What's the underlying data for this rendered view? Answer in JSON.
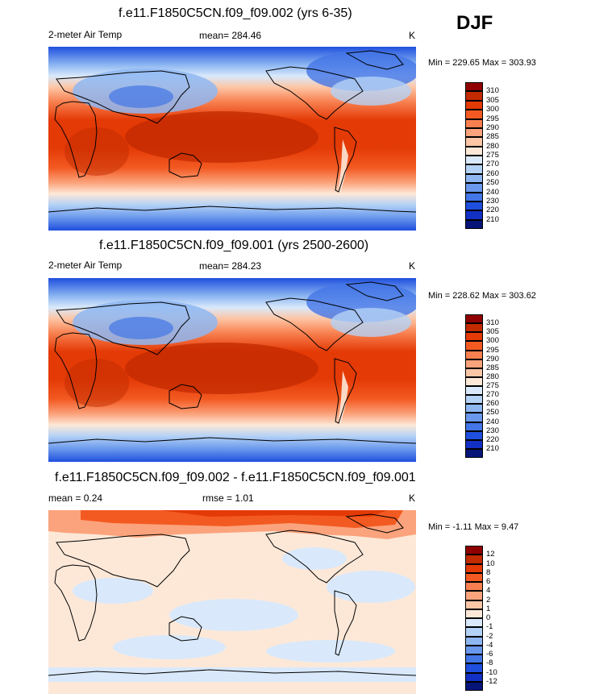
{
  "season": "DJF",
  "panels": [
    {
      "title": "f.e11.F1850C5CN.f09_f09.002 (yrs 6-35)",
      "left": "2-meter Air Temp",
      "center": "mean= 284.46",
      "right": "K",
      "minmax": "Min = 229.65 Max = 303.93",
      "colorbar_labels": [
        "310",
        "305",
        "300",
        "295",
        "290",
        "285",
        "280",
        "275",
        "270",
        "260",
        "250",
        "240",
        "230",
        "220",
        "210"
      ],
      "colorbar_colors": [
        "#8f0000",
        "#c22a00",
        "#e43a06",
        "#f35a22",
        "#f88050",
        "#fba37c",
        "#fdc6a6",
        "#fde8d8",
        "#d9e9fb",
        "#b4d2f6",
        "#8eb7f2",
        "#6a98ec",
        "#4376e6",
        "#1f4fde",
        "#1330c4",
        "#071478"
      ]
    },
    {
      "title": "f.e11.F1850C5CN.f09_f09.001 (yrs 2500-2600)",
      "left": "2-meter Air Temp",
      "center": "mean= 284.23",
      "right": "K",
      "minmax": "Min = 228.62 Max = 303.62",
      "colorbar_labels": [
        "310",
        "305",
        "300",
        "295",
        "290",
        "285",
        "280",
        "275",
        "270",
        "260",
        "250",
        "240",
        "230",
        "220",
        "210"
      ],
      "colorbar_colors": [
        "#8f0000",
        "#c22a00",
        "#e43a06",
        "#f35a22",
        "#f88050",
        "#fba37c",
        "#fdc6a6",
        "#fde8d8",
        "#d9e9fb",
        "#b4d2f6",
        "#8eb7f2",
        "#6a98ec",
        "#4376e6",
        "#1f4fde",
        "#1330c4",
        "#071478"
      ]
    },
    {
      "title": "f.e11.F1850C5CN.f09_f09.002 - f.e11.F1850C5CN.f09_f09.001",
      "left": "mean =   0.24",
      "center": "rmse =   1.01",
      "right": "K",
      "minmax": "Min =  -1.11 Max =   9.47",
      "colorbar_labels": [
        "12",
        "10",
        "8",
        "6",
        "4",
        "2",
        "1",
        "0",
        "-1",
        "-2",
        "-4",
        "-6",
        "-8",
        "-10",
        "-12"
      ],
      "colorbar_colors": [
        "#8f0000",
        "#c22a00",
        "#e43a06",
        "#f35a22",
        "#f88050",
        "#fba37c",
        "#fdc6a6",
        "#fde8d8",
        "#d9e9fb",
        "#b4d2f6",
        "#8eb7f2",
        "#6a98ec",
        "#4376e6",
        "#1f4fde",
        "#1330c4",
        "#071478"
      ]
    }
  ]
}
